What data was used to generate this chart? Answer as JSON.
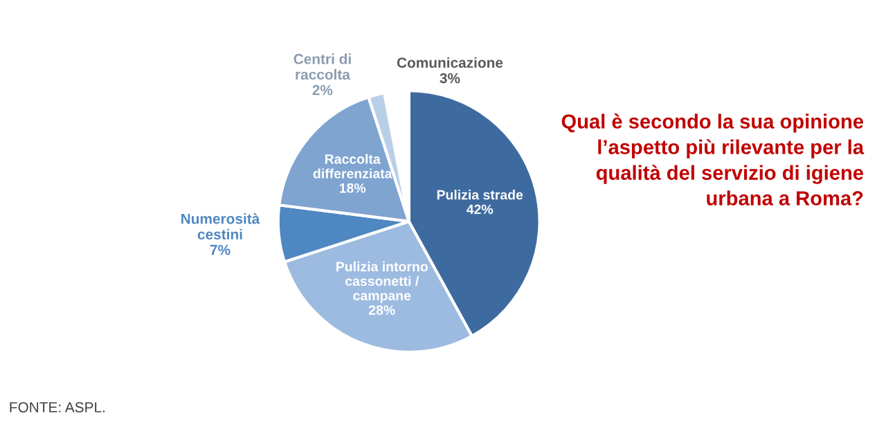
{
  "chart_data": {
    "type": "pie",
    "title": "Qual è secondo la sua opinione\nl’aspetto più rilevante per la\nqualità del servizio di igiene\nurbana a Roma?",
    "categories": [
      "Pulizia strade",
      "Pulizia intorno\ncassonetti /\ncampane",
      "Numerosità\ncestini",
      "Raccolta\ndifferenziata",
      "Centri di\nraccolta",
      "Comunicazione"
    ],
    "values": [
      42,
      28,
      7,
      18,
      2,
      3
    ],
    "colors": [
      "#3e6b9f",
      "#9dbbe0",
      "#4f87c2",
      "#7fa4d0",
      "#b9cfe8",
      "#ffffff"
    ],
    "value_labels": [
      "42%",
      "28%",
      "7%",
      "18%",
      "2%",
      "3%"
    ],
    "legend": false,
    "annotations": [
      "FONTE: ASPL."
    ]
  }
}
